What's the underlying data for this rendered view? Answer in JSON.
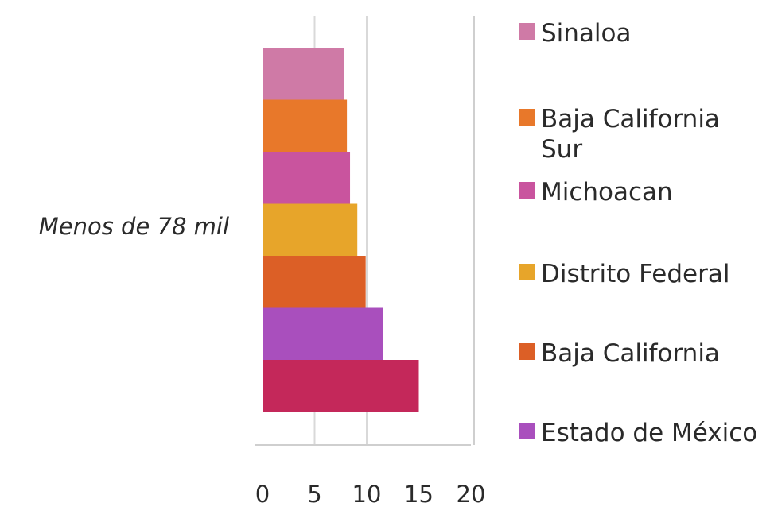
{
  "chart_data": {
    "type": "bar",
    "orientation": "horizontal",
    "categories": [
      "Menos de 78 mil"
    ],
    "series": [
      {
        "name": "Sinaloa",
        "values": [
          7.8
        ],
        "color": "#cf7aa6"
      },
      {
        "name": "Baja California Sur",
        "values": [
          8.1
        ],
        "color": "#e8782a"
      },
      {
        "name": "Michoacan",
        "values": [
          8.4
        ],
        "color": "#c9549e"
      },
      {
        "name": "Distrito Federal",
        "values": [
          9.1
        ],
        "color": "#e7a52a"
      },
      {
        "name": "Baja California",
        "values": [
          9.9
        ],
        "color": "#dc5f26"
      },
      {
        "name": "Estado de México",
        "values": [
          11.6
        ],
        "color": "#a94fbd"
      },
      {
        "name": "",
        "values": [
          15.0
        ],
        "color": "#c4285a"
      }
    ],
    "legend": [
      {
        "label": "Sinaloa",
        "color": "#cf7aa6"
      },
      {
        "label": "Baja California Sur",
        "lines": [
          "Baja California",
          "Sur"
        ],
        "color": "#e8782a"
      },
      {
        "label": "Michoacan",
        "color": "#c9549e"
      },
      {
        "label": "Distrito Federal",
        "color": "#e7a52a"
      },
      {
        "label": "Baja California",
        "color": "#dc5f26"
      },
      {
        "label": "Estado de México",
        "color": "#a94fbd"
      }
    ],
    "x_ticks": [
      "0",
      "5",
      "10",
      "15",
      "20"
    ],
    "xlim": [
      0,
      20
    ],
    "grid": true,
    "legend_position": "right",
    "title": "",
    "xlabel": "",
    "ylabel": ""
  }
}
